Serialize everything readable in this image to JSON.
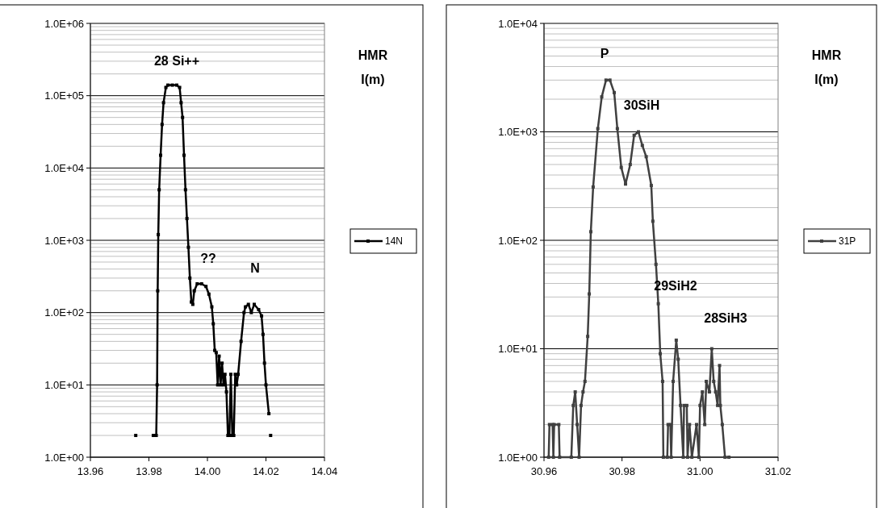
{
  "chart_data": [
    {
      "type": "line",
      "log": "y",
      "grid": "y",
      "legend": "right",
      "marker": "square",
      "line_style": "solid",
      "xlim": [
        13.96,
        14.04
      ],
      "xticks": [
        {
          "value": 13.96,
          "label": "13.96"
        },
        {
          "value": 13.98,
          "label": "13.98"
        },
        {
          "value": 14,
          "label": "14.00"
        },
        {
          "value": 14.02,
          "label": "14.02"
        },
        {
          "value": 14.04,
          "label": "14.04"
        }
      ],
      "ylim": [
        1,
        1000000
      ],
      "yticks": [
        {
          "value": 1,
          "label": "1.0E+00"
        },
        {
          "value": 10,
          "label": "1.0E+01"
        },
        {
          "value": 100,
          "label": "1.0E+02"
        },
        {
          "value": 1000,
          "label": "1.0E+03"
        },
        {
          "value": 10000,
          "label": "1.0E+04"
        },
        {
          "value": 100000,
          "label": "1.0E+05"
        },
        {
          "value": 1000000,
          "label": "1.0E+06"
        }
      ],
      "annotations": [
        "HMR",
        "I(m)",
        "28 Si++",
        "??",
        "N"
      ],
      "series": [
        {
          "name": "14N",
          "color": "#000000",
          "x": [
            13.9755,
            13.978,
            13.9815,
            13.9825,
            13.9828,
            13.983,
            13.9832,
            13.9835,
            13.984,
            13.9845,
            13.985,
            13.9858,
            13.9865,
            13.988,
            13.9895,
            13.9905,
            13.991,
            13.9915,
            13.992,
            13.9925,
            13.993,
            13.9935,
            13.994,
            13.9945,
            13.995,
            13.9955,
            13.9965,
            13.998,
            13.9995,
            14.0005,
            14.0015,
            14.002,
            14.0025,
            14.003,
            14.0035,
            14.004,
            14.0045,
            14.005,
            14.0055,
            14.006,
            14.0065,
            14.007,
            14.0075,
            14.008,
            14.0085,
            14.009,
            14.0095,
            14.01,
            14.0105,
            14.0115,
            14.0125,
            14.013,
            14.014,
            14.015,
            14.016,
            14.0175,
            14.0185,
            14.019,
            14.0195,
            14.02,
            14.021,
            14.0213,
            14.0216
          ],
          "values": [
            2,
            null,
            2,
            2,
            10,
            200,
            1200,
            5000,
            15000,
            40000,
            80000,
            130000,
            140000,
            140000,
            140000,
            130000,
            80000,
            50000,
            15000,
            5000,
            2000,
            800,
            300,
            140,
            130,
            200,
            250,
            250,
            230,
            180,
            120,
            70,
            30,
            28,
            10,
            25,
            10,
            20,
            10,
            14,
            8,
            2,
            2,
            14,
            2,
            2,
            14,
            10,
            14,
            40,
            100,
            120,
            130,
            100,
            130,
            110,
            90,
            50,
            20,
            10,
            4,
            null,
            2
          ]
        }
      ]
    },
    {
      "type": "line",
      "log": "y",
      "grid": "y",
      "legend": "right",
      "marker": "square",
      "line_style": "solid",
      "xlim": [
        30.96,
        31.02
      ],
      "xticks": [
        {
          "value": 30.96,
          "label": "30.96"
        },
        {
          "value": 30.98,
          "label": "30.98"
        },
        {
          "value": 31,
          "label": "31.00"
        },
        {
          "value": 31.02,
          "label": "31.02"
        }
      ],
      "ylim": [
        1,
        10000
      ],
      "yticks": [
        {
          "value": 1,
          "label": "1.0E+00"
        },
        {
          "value": 10,
          "label": "1.0E+01"
        },
        {
          "value": 100,
          "label": "1.0E+02"
        },
        {
          "value": 1000,
          "label": "1.0E+03"
        },
        {
          "value": 10000,
          "label": "1.0E+04"
        }
      ],
      "annotations": [
        "HMR",
        "I(m)",
        "P",
        "30SiH",
        "29SiH2",
        "28SiH3"
      ],
      "series": [
        {
          "name": "31P",
          "color": "#404040",
          "x": [
            30.9612,
            30.9614,
            30.9622,
            30.9624,
            30.9626,
            30.9638,
            30.964,
            30.967,
            30.9675,
            30.968,
            30.9685,
            30.969,
            30.9695,
            30.97,
            30.9705,
            30.9712,
            30.9716,
            30.972,
            30.9726,
            30.9738,
            30.9748,
            30.9759,
            30.9769,
            30.978,
            30.9788,
            30.9798,
            30.9809,
            30.9821,
            30.9831,
            30.9842,
            30.9852,
            30.9862,
            30.9875,
            30.9879,
            30.9887,
            30.9893,
            30.9898,
            30.9904,
            30.9906,
            30.9916,
            30.9918,
            30.9924,
            30.9926,
            30.9931,
            30.9939,
            30.9944,
            30.995,
            30.9957,
            30.9959,
            30.9966,
            30.9968,
            30.9973,
            30.9979,
            30.9991,
            30.9997,
            31.0,
            31.0006,
            31.0012,
            31.0016,
            31.0024,
            31.003,
            31.0035,
            31.004,
            31.0045,
            31.005,
            31.0052,
            31.0057,
            31.0064,
            31.0074
          ],
          "values": [
            1,
            2,
            2,
            1,
            2,
            2,
            1,
            1,
            3,
            4,
            2,
            1,
            3,
            4,
            5,
            13,
            32,
            120,
            310,
            1070,
            2100,
            3000,
            3000,
            2300,
            1070,
            470,
            330,
            500,
            930,
            1000,
            750,
            590,
            320,
            150,
            60,
            26,
            9,
            5,
            1,
            1,
            2,
            2,
            1,
            5,
            12,
            8,
            3,
            1,
            3,
            3,
            1,
            2,
            1,
            2,
            1,
            3,
            4,
            2,
            5,
            4,
            10,
            5,
            4,
            3,
            7,
            3,
            2,
            1,
            1
          ]
        }
      ]
    }
  ]
}
